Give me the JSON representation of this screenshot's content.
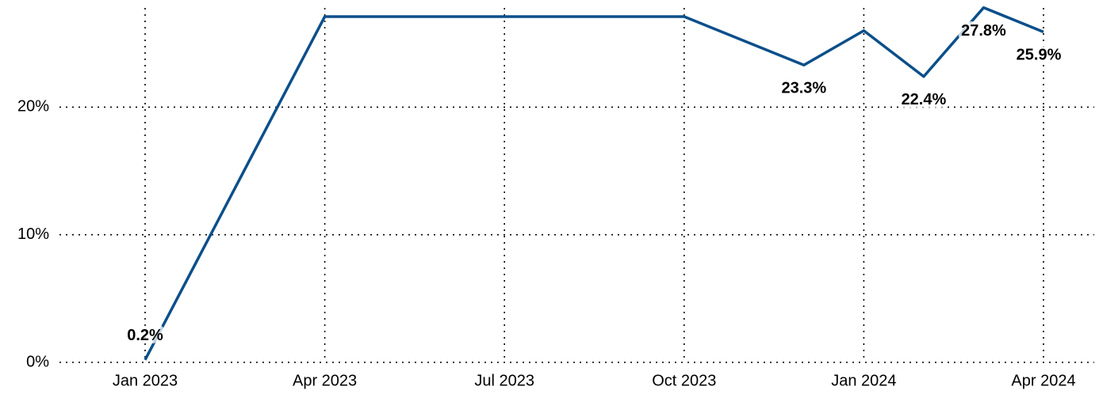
{
  "chart_data": {
    "type": "line",
    "x": [
      "2023-01",
      "2023-04",
      "2023-10",
      "2023-12",
      "2024-01",
      "2024-02",
      "2024-03",
      "2024-04"
    ],
    "series": [
      {
        "color": "#0b4f8a",
        "values": [
          0.2,
          27.1,
          27.1,
          23.3,
          26.0,
          22.4,
          27.8,
          25.9
        ],
        "value_labels": [
          "0.2%",
          null,
          null,
          "23.3%",
          null,
          "22.4%",
          "27.8%",
          "25.9%"
        ]
      }
    ],
    "xlim": [
      "2023-01",
      "2024-04"
    ],
    "xticks": [
      {
        "value": "2023-01",
        "label": "Jan 2023"
      },
      {
        "value": "2023-04",
        "label": "Apr 2023"
      },
      {
        "value": "2023-07",
        "label": "Jul 2023"
      },
      {
        "value": "2023-10",
        "label": "Oct 2023"
      },
      {
        "value": "2024-01",
        "label": "Jan 2024"
      },
      {
        "value": "2024-04",
        "label": "Apr 2024"
      }
    ],
    "ylim": [
      0,
      28.4
    ],
    "yticks": [
      {
        "value": 0,
        "label": "0%"
      },
      {
        "value": 10,
        "label": "10%"
      },
      {
        "value": 20,
        "label": "20%"
      }
    ],
    "grid": true
  }
}
